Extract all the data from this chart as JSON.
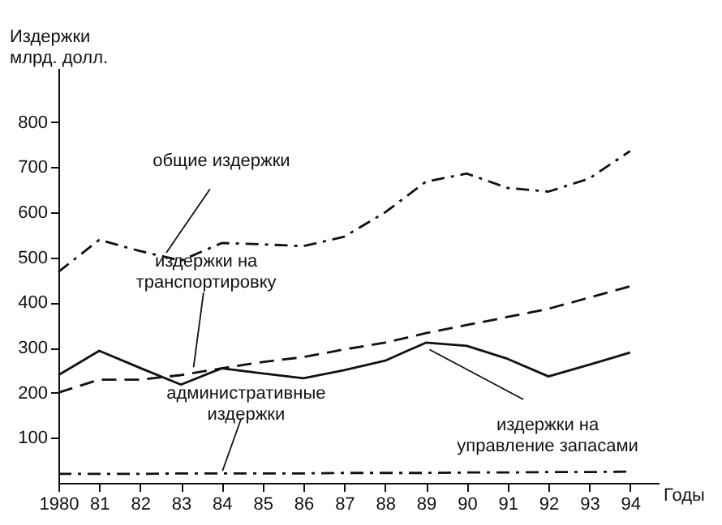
{
  "chart_data": {
    "type": "line",
    "ylabel": "Издержки\nмлрд. долл.",
    "xlabel": "Годы",
    "x": [
      1980,
      1981,
      1982,
      1983,
      1984,
      1985,
      1986,
      1987,
      1988,
      1989,
      1990,
      1991,
      1992,
      1993,
      1994
    ],
    "xlim": [
      1980,
      1994.7
    ],
    "ylim": [
      0,
      920
    ],
    "xticks": [
      {
        "value": 1980,
        "label": "1980"
      },
      {
        "value": 1981,
        "label": "81"
      },
      {
        "value": 1982,
        "label": "82"
      },
      {
        "value": 1983,
        "label": "83"
      },
      {
        "value": 1984,
        "label": "84"
      },
      {
        "value": 1985,
        "label": "85"
      },
      {
        "value": 1986,
        "label": "86"
      },
      {
        "value": 1987,
        "label": "87"
      },
      {
        "value": 1988,
        "label": "88"
      },
      {
        "value": 1989,
        "label": "89"
      },
      {
        "value": 1990,
        "label": "90"
      },
      {
        "value": 1991,
        "label": "91"
      },
      {
        "value": 1992,
        "label": "92"
      },
      {
        "value": 1993,
        "label": "93"
      },
      {
        "value": 1994,
        "label": "94"
      }
    ],
    "yticks": [
      100,
      200,
      300,
      400,
      500,
      600,
      700,
      800
    ],
    "grid": false,
    "marker": "none",
    "series": [
      {
        "color": "#111111",
        "line_style": "dashdot",
        "values": [
          468,
          539,
          514,
          493,
          532,
          529,
          525,
          546,
          600,
          668,
          686,
          654,
          646,
          675,
          736
        ]
      },
      {
        "color": "#111111",
        "line_style": "dashed",
        "values": [
          200,
          229,
          229,
          239,
          254,
          268,
          279,
          296,
          311,
          332,
          350,
          368,
          386,
          411,
          436
        ]
      },
      {
        "color": "#111111",
        "line_style": "solid",
        "values": [
          239,
          293,
          255,
          218,
          254,
          243,
          232,
          250,
          271,
          311,
          304,
          275,
          236,
          262,
          289
        ]
      },
      {
        "color": "#111111",
        "line_style": "dashdot",
        "values": [
          20,
          20,
          20,
          21,
          21,
          21,
          21,
          22,
          22,
          22,
          23,
          23,
          24,
          24,
          25
        ]
      }
    ],
    "annotations": [
      {
        "text": "общие издержки",
        "x": 1982.6,
        "y": 505
      },
      {
        "text": "издержки на\nтранспортировку",
        "x": 1983.3,
        "y": 250
      },
      {
        "text": "административные\nиздержки",
        "x": 1984,
        "y": 22
      },
      {
        "text": "издержки на\nуправление запасами",
        "x": 1989,
        "y": 300
      }
    ]
  }
}
